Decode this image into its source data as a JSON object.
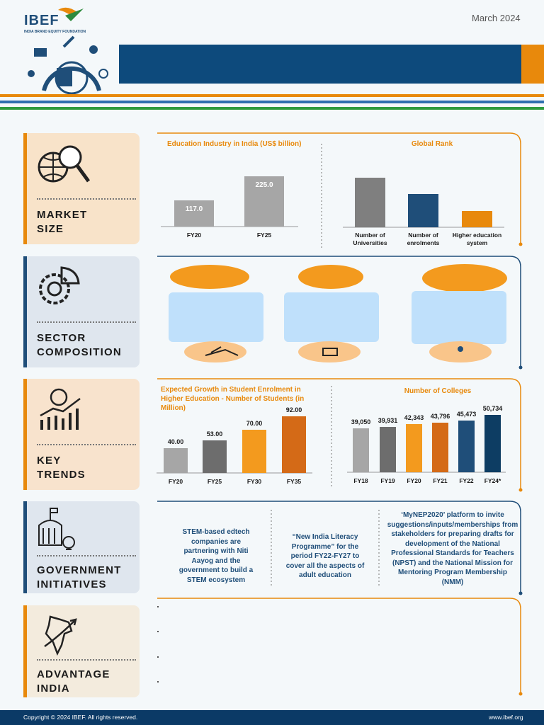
{
  "header": {
    "logo": "IBEF",
    "logo_subtitle": "INDIA BRAND EQUITY FOUNDATION",
    "date": "March 2024"
  },
  "sections": [
    {
      "title": [
        "MARKET",
        "SIZE"
      ]
    },
    {
      "title": [
        "SECTOR",
        "COMPOSITION"
      ]
    },
    {
      "title": [
        "KEY",
        "TRENDS"
      ]
    },
    {
      "title": [
        "GOVERNMENT",
        "INITIATIVES"
      ]
    },
    {
      "title": [
        "ADVANTAGE",
        "INDIA"
      ]
    }
  ],
  "chart_data": [
    {
      "type": "bar",
      "title": "Education Industry in India (US$ billion)",
      "categories": [
        "FY20",
        "FY25"
      ],
      "values": [
        117.0,
        225.0
      ],
      "value_labels": [
        "117.0",
        "225.0"
      ],
      "colors": [
        "#a6a6a6",
        "#a6a6a6"
      ]
    },
    {
      "type": "bar",
      "title": "Global Rank",
      "categories": [
        "Number of Universities",
        "Number of enrolments",
        "Higher education system"
      ],
      "values": [
        3,
        2,
        1
      ],
      "colors": [
        "#7f7f7f",
        "#1f4e79",
        "#e8890c"
      ]
    },
    {
      "type": "bar",
      "title": "Expected Growth in Student Enrolment in Higher Education - Number of Students (in Million)",
      "categories": [
        "FY20",
        "FY25",
        "FY30",
        "FY35"
      ],
      "values": [
        40,
        53,
        70,
        92
      ],
      "value_labels": [
        "40.00",
        "53.00",
        "70.00",
        "92.00"
      ],
      "colors": [
        "#a6a6a6",
        "#6d6d6d",
        "#f39a1e",
        "#d46a17"
      ]
    },
    {
      "type": "bar",
      "title": "Number of Colleges",
      "categories": [
        "FY18",
        "FY19",
        "FY20",
        "FY21",
        "FY22",
        "FY24*"
      ],
      "values": [
        39050,
        39931,
        42343,
        43796,
        45473,
        50734
      ],
      "value_labels": [
        "39,050",
        "39,931",
        "42,343",
        "43,796",
        "45,473",
        "50,734"
      ],
      "colors": [
        "#a6a6a6",
        "#6d6d6d",
        "#f39a1e",
        "#d46a17",
        "#1f4e79",
        "#0d3d63"
      ]
    }
  ],
  "government_initiatives": [
    "STEM-based edtech companies are partnering with Niti Aayog and the government to build a STEM ecosystem",
    "“New India Literacy Programme” for the period FY22-FY27 to cover all the aspects of adult education",
    "‘MyNEP2020’ platform to invite suggestions/inputs/memberships from stakeholders for preparing drafts for development of the National Professional Standards for Teachers (NPST) and the National Mission for Mentoring Program Membership (NMM)"
  ],
  "footer": {
    "copyright": "Copyright © 2024 IBEF. All rights reserved.",
    "website": "www.ibef.org"
  }
}
